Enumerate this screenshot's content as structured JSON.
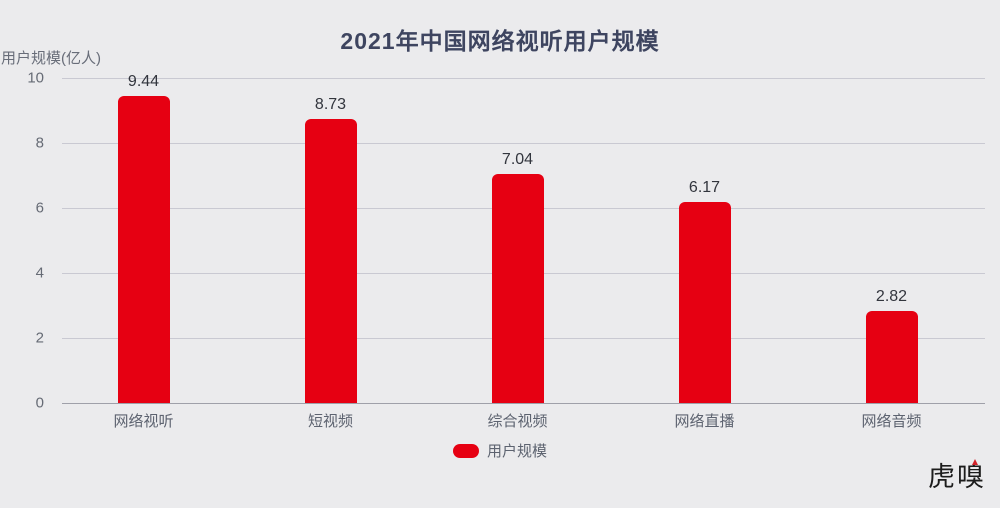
{
  "title": "2021年中国网络视听用户规模",
  "y_axis_unit": "用户规模(亿人)",
  "legend": {
    "label": "用户规模"
  },
  "watermark": "虎嗅",
  "colors": {
    "background": "#ebebed",
    "bar": "#e60012",
    "title": "#3e4560",
    "axis_text": "#666b75",
    "gridline": "#c9c9d2",
    "axis_line": "#9fa0a9"
  },
  "chart_data": {
    "type": "bar",
    "title": "2021年中国网络视听用户规模",
    "categories": [
      "网络视听",
      "短视频",
      "综合视频",
      "网络直播",
      "网络音频"
    ],
    "values": [
      9.44,
      8.73,
      7.04,
      6.17,
      2.82
    ],
    "value_labels": [
      "9.44",
      "8.73",
      "7.04",
      "6.17",
      "2.82"
    ],
    "series_name": "用户规模",
    "xlabel": "",
    "ylabel": "用户规模(亿人)",
    "ylim": [
      0,
      10
    ],
    "yticks": [
      0,
      2,
      4,
      6,
      8,
      10
    ],
    "grid": true,
    "legend_position": "bottom"
  }
}
